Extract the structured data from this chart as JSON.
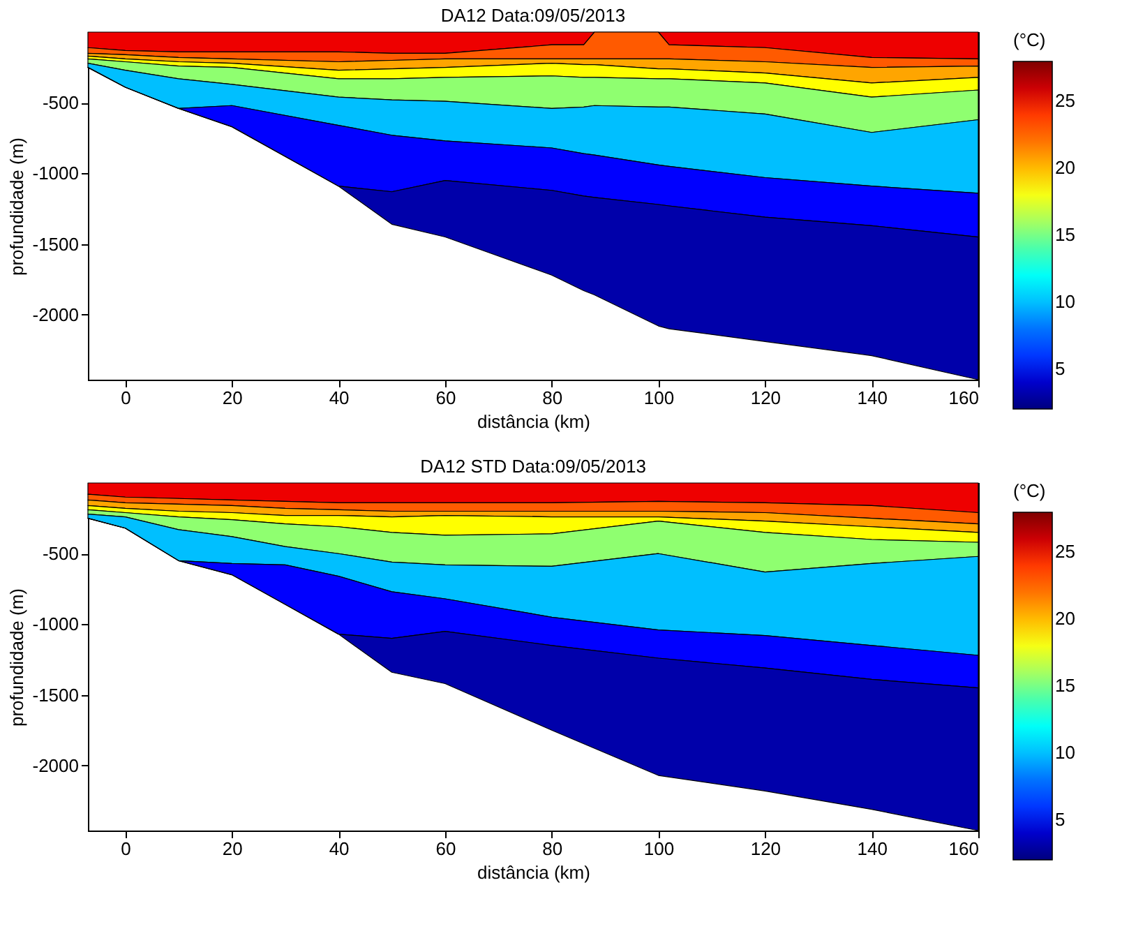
{
  "chart_data": [
    {
      "type": "area",
      "title": "DA12  Data:09/05/2013",
      "xlabel": "distância (km)",
      "ylabel": "profundidade (m)",
      "clabel": "(°C)",
      "stacked": true,
      "grid": false,
      "x": [
        -7,
        0,
        10,
        20,
        40,
        50,
        60,
        80,
        86,
        88,
        100,
        102,
        120,
        140,
        160
      ],
      "xlim": [
        -7,
        160
      ],
      "xticks": [
        0,
        20,
        40,
        60,
        80,
        100,
        120,
        140,
        160
      ],
      "ylim": [
        -2460,
        0
      ],
      "yticks": [
        -500,
        -1000,
        -1500,
        -2000
      ],
      "clim": [
        2,
        28
      ],
      "cticks": [
        5,
        10,
        15,
        20,
        25
      ],
      "series": [
        {
          "color": "#ee0000",
          "values": [
            -110,
            -130,
            -140,
            -140,
            -140,
            -150,
            -150,
            -90,
            -90,
            0,
            0,
            -90,
            -110,
            -180,
            -190
          ]
        },
        {
          "color": "#ff5a00",
          "values": [
            -40,
            -30,
            -40,
            -50,
            -70,
            -50,
            -40,
            -100,
            -100,
            -190,
            -190,
            -100,
            -100,
            -70,
            -50
          ]
        },
        {
          "color": "#ffa500",
          "values": [
            -20,
            -30,
            -30,
            -30,
            -60,
            -60,
            -60,
            -30,
            -40,
            -40,
            -70,
            -70,
            -80,
            -110,
            -80
          ]
        },
        {
          "color": "#ffff00",
          "values": [
            -20,
            -20,
            -30,
            -30,
            -60,
            -70,
            -70,
            -90,
            -90,
            -90,
            -70,
            -70,
            -70,
            -100,
            -90
          ]
        },
        {
          "color": "#8fff70",
          "values": [
            -30,
            -60,
            -90,
            -120,
            -130,
            -150,
            -170,
            -230,
            -210,
            -200,
            -200,
            -200,
            -220,
            -250,
            -210
          ]
        },
        {
          "color": "#00bfff",
          "values": [
            -30,
            -120,
            -210,
            -150,
            -200,
            -250,
            -280,
            -280,
            -330,
            -350,
            -410,
            -420,
            -450,
            -380,
            -520
          ]
        },
        {
          "color": "#0000ff",
          "values": [
            0,
            0,
            0,
            -150,
            -430,
            -400,
            -280,
            -300,
            -300,
            -300,
            -280,
            -280,
            -280,
            -280,
            -310
          ]
        },
        {
          "color": "#0000aa",
          "values": [
            0,
            0,
            0,
            0,
            0,
            -230,
            -400,
            -600,
            -670,
            -690,
            -860,
            -870,
            -880,
            -920,
            -1010
          ]
        }
      ]
    },
    {
      "type": "area",
      "title": "DA12 STD  Data:09/05/2013",
      "xlabel": "distância (km)",
      "ylabel": "profundidade (m)",
      "clabel": "(°C)",
      "stacked": true,
      "grid": false,
      "x": [
        -7,
        0,
        10,
        20,
        30,
        40,
        50,
        60,
        80,
        100,
        120,
        140,
        160
      ],
      "xlim": [
        -7,
        160
      ],
      "xticks": [
        0,
        20,
        40,
        60,
        80,
        100,
        120,
        140,
        160
      ],
      "ylim": [
        -2460,
        0
      ],
      "yticks": [
        -500,
        -1000,
        -1500,
        -2000
      ],
      "clim": [
        2,
        28
      ],
      "cticks": [
        5,
        10,
        15,
        20,
        25
      ],
      "series": [
        {
          "color": "#ee0000",
          "values": [
            -80,
            -100,
            -110,
            -120,
            -130,
            -140,
            -140,
            -140,
            -140,
            -130,
            -140,
            -160,
            -210
          ]
        },
        {
          "color": "#ff5a00",
          "values": [
            -40,
            -40,
            -40,
            -40,
            -50,
            -50,
            -60,
            -60,
            -60,
            -70,
            -70,
            -90,
            -80
          ]
        },
        {
          "color": "#ffa500",
          "values": [
            -40,
            -40,
            -50,
            -50,
            -50,
            -40,
            -40,
            -30,
            -40,
            -40,
            -60,
            -60,
            -60
          ]
        },
        {
          "color": "#ffff00",
          "values": [
            -30,
            -30,
            -40,
            -50,
            -60,
            -80,
            -110,
            -140,
            -120,
            -30,
            -80,
            -90,
            -70
          ]
        },
        {
          "color": "#8fff70",
          "values": [
            -30,
            -30,
            -90,
            -120,
            -160,
            -190,
            -210,
            -210,
            -230,
            -230,
            -280,
            -170,
            -100
          ]
        },
        {
          "color": "#00bfff",
          "values": [
            -30,
            -80,
            -220,
            -190,
            -130,
            -160,
            -210,
            -240,
            -360,
            -540,
            -450,
            -580,
            -700
          ]
        },
        {
          "color": "#0000ff",
          "values": [
            0,
            0,
            0,
            -80,
            -280,
            -410,
            -330,
            -230,
            -200,
            -200,
            -230,
            -240,
            -230
          ]
        },
        {
          "color": "#0000aa",
          "values": [
            0,
            0,
            0,
            0,
            0,
            0,
            -240,
            -370,
            -600,
            -830,
            -870,
            -920,
            -1010
          ]
        }
      ]
    }
  ]
}
